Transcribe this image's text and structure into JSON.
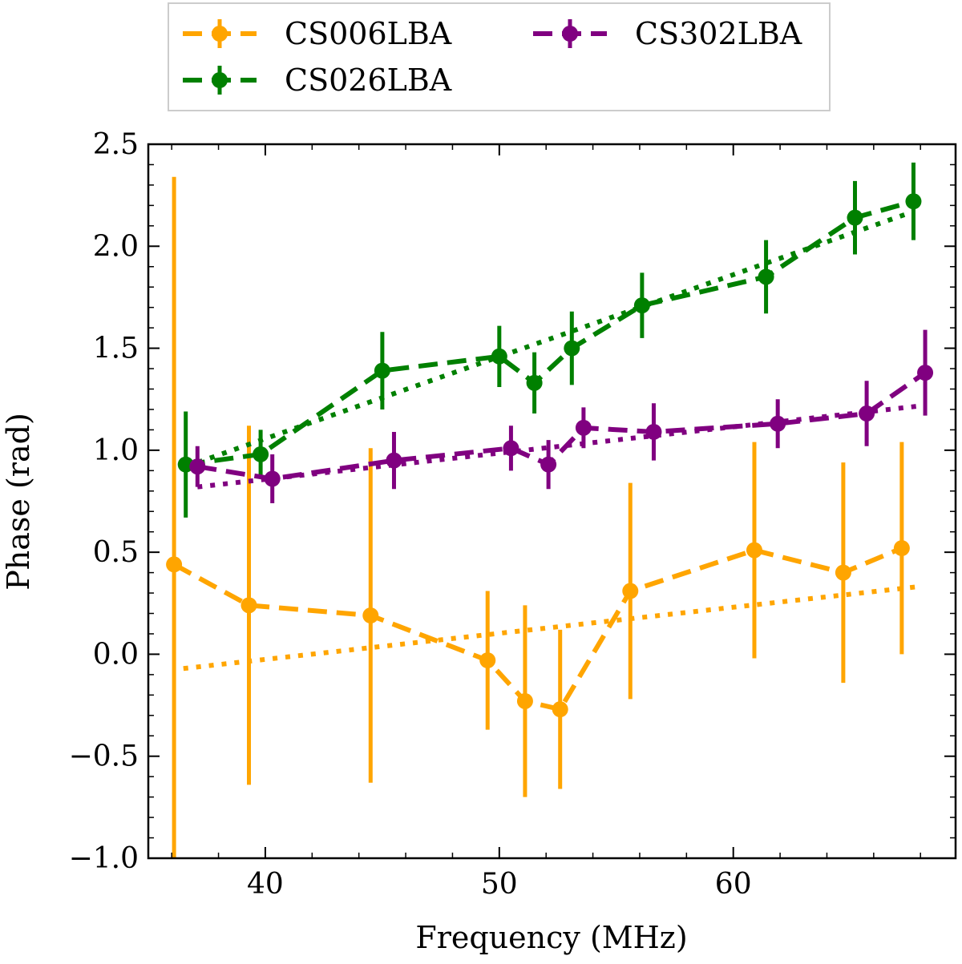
{
  "chart_data": {
    "type": "line",
    "title": "",
    "xlabel": "Frequency (MHz)",
    "ylabel": "Phase (rad)",
    "xlim": [
      35,
      69.5
    ],
    "ylim": [
      -1.0,
      2.5
    ],
    "xticks": [
      40,
      50,
      60
    ],
    "xtick_labels": [
      "40",
      "50",
      "60"
    ],
    "yticks": [
      -1.0,
      -0.5,
      0.0,
      0.5,
      1.0,
      1.5,
      2.0,
      2.5
    ],
    "ytick_labels": [
      "−1.0",
      "−0.5",
      "0.0",
      "0.5",
      "1.0",
      "1.5",
      "2.0",
      "2.5"
    ],
    "grid": false,
    "legend_position": "top, above plot",
    "series": [
      {
        "name": "CS006LBA",
        "color": "#FFA500",
        "x": [
          36.1,
          39.3,
          44.5,
          49.5,
          51.1,
          52.6,
          55.6,
          60.9,
          64.7,
          67.2
        ],
        "y": [
          0.44,
          0.24,
          0.19,
          -0.03,
          -0.23,
          -0.27,
          0.31,
          0.51,
          0.4,
          0.52
        ],
        "yerr": [
          1.9,
          0.88,
          0.82,
          0.34,
          0.47,
          0.39,
          0.53,
          0.53,
          0.54,
          0.52
        ],
        "fit": {
          "x": [
            36.5,
            67.8
          ],
          "y": [
            -0.07,
            0.33
          ]
        }
      },
      {
        "name": "CS026LBA",
        "color": "#008000",
        "x": [
          36.6,
          39.8,
          45.0,
          50.0,
          51.5,
          53.1,
          56.1,
          61.4,
          65.2,
          67.7
        ],
        "y": [
          0.93,
          0.98,
          1.39,
          1.46,
          1.33,
          1.5,
          1.71,
          1.85,
          2.14,
          2.22
        ],
        "yerr": [
          0.26,
          0.12,
          0.19,
          0.15,
          0.15,
          0.18,
          0.16,
          0.18,
          0.18,
          0.19
        ],
        "fit": {
          "x": [
            36.6,
            67.7
          ],
          "y": [
            0.92,
            2.17
          ]
        }
      },
      {
        "name": "CS302LBA",
        "color": "#800080",
        "x": [
          37.1,
          40.3,
          45.5,
          50.5,
          52.1,
          53.6,
          56.6,
          61.9,
          65.7,
          68.2
        ],
        "y": [
          0.92,
          0.86,
          0.95,
          1.01,
          0.93,
          1.11,
          1.09,
          1.13,
          1.18,
          1.38
        ],
        "yerr": [
          0.1,
          0.12,
          0.14,
          0.11,
          0.12,
          0.1,
          0.14,
          0.12,
          0.16,
          0.21
        ],
        "fit": {
          "x": [
            37.1,
            68.2
          ],
          "y": [
            0.82,
            1.22
          ]
        }
      }
    ]
  }
}
